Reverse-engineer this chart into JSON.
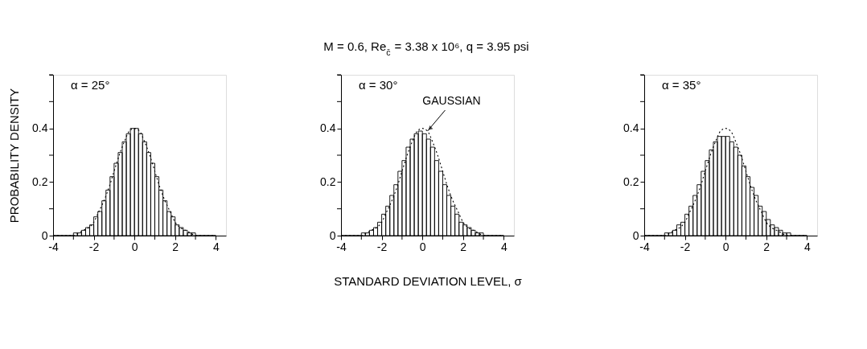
{
  "chart_data": [
    {
      "type": "histogram",
      "ylabel": "PROBABILITY DENSITY",
      "annotations": [
        "α = 25°"
      ],
      "grid": false,
      "xlim": [
        -4,
        4.5
      ],
      "xticks": [
        -4,
        {
          "value": -3,
          "label": null
        },
        -2,
        {
          "value": -1,
          "label": null
        },
        0,
        {
          "value": 1,
          "label": null
        },
        2,
        {
          "value": 3,
          "label": null
        },
        4
      ],
      "ylim": [
        0,
        0.6
      ],
      "yticks": [
        0,
        {
          "value": 0.1,
          "label": null
        },
        0.2,
        {
          "value": 0.3,
          "label": null
        },
        0.4,
        {
          "value": 0.5,
          "label": null
        },
        {
          "value": 0.6,
          "label": null
        }
      ],
      "series": [
        {
          "color": "#000000",
          "bins": [
            -4,
            -3.8,
            -3.6,
            -3.4,
            -3.2,
            -3,
            -2.8,
            -2.6,
            -2.4,
            -2.2,
            -2,
            -1.8,
            -1.6,
            -1.4,
            -1.2,
            -1,
            -0.8,
            -0.6,
            -0.4,
            -0.2,
            0,
            0.2,
            0.4,
            0.6,
            0.8,
            1,
            1.2,
            1.4,
            1.6,
            1.8,
            2,
            2.2,
            2.4,
            2.6,
            2.8,
            3,
            3.2,
            3.4,
            3.6,
            3.8,
            4
          ],
          "values": [
            0,
            0,
            0,
            0,
            0,
            0.01,
            0.01,
            0.02,
            0.03,
            0.04,
            0.07,
            0.09,
            0.13,
            0.17,
            0.22,
            0.27,
            0.31,
            0.35,
            0.38,
            0.4,
            0.4,
            0.38,
            0.35,
            0.31,
            0.27,
            0.22,
            0.17,
            0.13,
            0.09,
            0.07,
            0.04,
            0.03,
            0.02,
            0.01,
            0.01,
            0,
            0,
            0,
            0,
            0
          ]
        },
        {
          "type": "line",
          "color": "#000000",
          "line_style": "dotted",
          "x": [
            -4,
            -3.75,
            -3.5,
            -3.25,
            -3,
            -2.75,
            -2.5,
            -2.25,
            -2,
            -1.75,
            -1.5,
            -1.25,
            -1,
            -0.75,
            -0.5,
            -0.25,
            0,
            0.25,
            0.5,
            0.75,
            1,
            1.25,
            1.5,
            1.75,
            2,
            2.25,
            2.5,
            2.75,
            3,
            3.25,
            3.5,
            3.75,
            4
          ],
          "values": [
            0,
            0,
            0,
            0,
            0,
            0.01,
            0.02,
            0.03,
            0.05,
            0.09,
            0.13,
            0.18,
            0.24,
            0.3,
            0.35,
            0.39,
            0.4,
            0.39,
            0.35,
            0.3,
            0.24,
            0.18,
            0.13,
            0.09,
            0.05,
            0.03,
            0.02,
            0.01,
            0,
            0,
            0,
            0,
            0
          ]
        }
      ]
    },
    {
      "type": "histogram",
      "title": "M = 0.6, Re$_{c̄}$ = 3.38 x 10⁶, q = 3.95 psi",
      "xlabel": "STANDARD DEVIATION LEVEL, σ",
      "annotations": [
        "α = 30°",
        {
          "text": "GAUSSIAN",
          "x": 0.25,
          "y": 0.39
        }
      ],
      "grid": false,
      "xlim": [
        -4,
        4.5
      ],
      "xticks": [
        -4,
        {
          "value": -3,
          "label": null
        },
        -2,
        {
          "value": -1,
          "label": null
        },
        0,
        {
          "value": 1,
          "label": null
        },
        2,
        {
          "value": 3,
          "label": null
        },
        4
      ],
      "ylim": [
        0,
        0.6
      ],
      "yticks": [
        0,
        {
          "value": 0.1,
          "label": null
        },
        0.2,
        {
          "value": 0.3,
          "label": null
        },
        0.4,
        {
          "value": 0.5,
          "label": null
        },
        {
          "value": 0.6,
          "label": null
        }
      ],
      "series": [
        {
          "color": "#000000",
          "bins": [
            -4,
            -3.8,
            -3.6,
            -3.4,
            -3.2,
            -3,
            -2.8,
            -2.6,
            -2.4,
            -2.2,
            -2,
            -1.8,
            -1.6,
            -1.4,
            -1.2,
            -1,
            -0.8,
            -0.6,
            -0.4,
            -0.2,
            0,
            0.2,
            0.4,
            0.6,
            0.8,
            1,
            1.2,
            1.4,
            1.6,
            1.8,
            2,
            2.2,
            2.4,
            2.6,
            2.8,
            3,
            3.2,
            3.4,
            3.6,
            3.8,
            4
          ],
          "values": [
            0,
            0,
            0,
            0,
            0,
            0.01,
            0.01,
            0.02,
            0.03,
            0.05,
            0.08,
            0.11,
            0.15,
            0.19,
            0.24,
            0.28,
            0.33,
            0.36,
            0.38,
            0.39,
            0.38,
            0.36,
            0.33,
            0.28,
            0.24,
            0.19,
            0.15,
            0.11,
            0.08,
            0.05,
            0.04,
            0.03,
            0.02,
            0.01,
            0.01,
            0,
            0,
            0,
            0,
            0
          ]
        },
        {
          "type": "line",
          "color": "#000000",
          "line_style": "dotted",
          "x": [
            -4,
            -3.75,
            -3.5,
            -3.25,
            -3,
            -2.75,
            -2.5,
            -2.25,
            -2,
            -1.75,
            -1.5,
            -1.25,
            -1,
            -0.75,
            -0.5,
            -0.25,
            0,
            0.25,
            0.5,
            0.75,
            1,
            1.25,
            1.5,
            1.75,
            2,
            2.25,
            2.5,
            2.75,
            3,
            3.25,
            3.5,
            3.75,
            4
          ],
          "values": [
            0,
            0,
            0,
            0,
            0,
            0.01,
            0.02,
            0.03,
            0.05,
            0.09,
            0.13,
            0.18,
            0.24,
            0.3,
            0.35,
            0.39,
            0.4,
            0.39,
            0.35,
            0.3,
            0.24,
            0.18,
            0.13,
            0.09,
            0.05,
            0.03,
            0.02,
            0.01,
            0,
            0,
            0,
            0,
            0
          ]
        }
      ]
    },
    {
      "type": "histogram",
      "annotations": [
        "α = 35°"
      ],
      "grid": false,
      "xlim": [
        -4,
        4.5
      ],
      "xticks": [
        -4,
        {
          "value": -3,
          "label": null
        },
        -2,
        {
          "value": -1,
          "label": null
        },
        0,
        {
          "value": 1,
          "label": null
        },
        2,
        {
          "value": 3,
          "label": null
        },
        4
      ],
      "ylim": [
        0,
        0.6
      ],
      "yticks": [
        0,
        {
          "value": 0.1,
          "label": null
        },
        0.2,
        {
          "value": 0.3,
          "label": null
        },
        0.4,
        {
          "value": 0.5,
          "label": null
        },
        {
          "value": 0.6,
          "label": null
        }
      ],
      "series": [
        {
          "color": "#000000",
          "bins": [
            -4,
            -3.8,
            -3.6,
            -3.4,
            -3.2,
            -3,
            -2.8,
            -2.6,
            -2.4,
            -2.2,
            -2,
            -1.8,
            -1.6,
            -1.4,
            -1.2,
            -1,
            -0.8,
            -0.6,
            -0.4,
            -0.2,
            0,
            0.2,
            0.4,
            0.6,
            0.8,
            1,
            1.2,
            1.4,
            1.6,
            1.8,
            2,
            2.2,
            2.4,
            2.6,
            2.8,
            3,
            3.2,
            3.4,
            3.6,
            3.8,
            4
          ],
          "values": [
            0,
            0,
            0,
            0,
            0,
            0.01,
            0.01,
            0.02,
            0.04,
            0.05,
            0.08,
            0.11,
            0.15,
            0.19,
            0.24,
            0.28,
            0.32,
            0.35,
            0.37,
            0.37,
            0.37,
            0.35,
            0.33,
            0.3,
            0.26,
            0.22,
            0.18,
            0.15,
            0.11,
            0.09,
            0.06,
            0.04,
            0.03,
            0.02,
            0.01,
            0.01,
            0,
            0,
            0,
            0
          ]
        },
        {
          "type": "line",
          "color": "#000000",
          "line_style": "dotted",
          "x": [
            -4,
            -3.75,
            -3.5,
            -3.25,
            -3,
            -2.75,
            -2.5,
            -2.25,
            -2,
            -1.75,
            -1.5,
            -1.25,
            -1,
            -0.75,
            -0.5,
            -0.25,
            0,
            0.25,
            0.5,
            0.75,
            1,
            1.25,
            1.5,
            1.75,
            2,
            2.25,
            2.5,
            2.75,
            3,
            3.25,
            3.5,
            3.75,
            4
          ],
          "values": [
            0,
            0,
            0,
            0,
            0,
            0.01,
            0.02,
            0.03,
            0.05,
            0.09,
            0.13,
            0.18,
            0.24,
            0.3,
            0.35,
            0.39,
            0.4,
            0.39,
            0.35,
            0.3,
            0.24,
            0.18,
            0.13,
            0.09,
            0.05,
            0.03,
            0.02,
            0.01,
            0,
            0,
            0,
            0,
            0
          ]
        }
      ]
    }
  ]
}
